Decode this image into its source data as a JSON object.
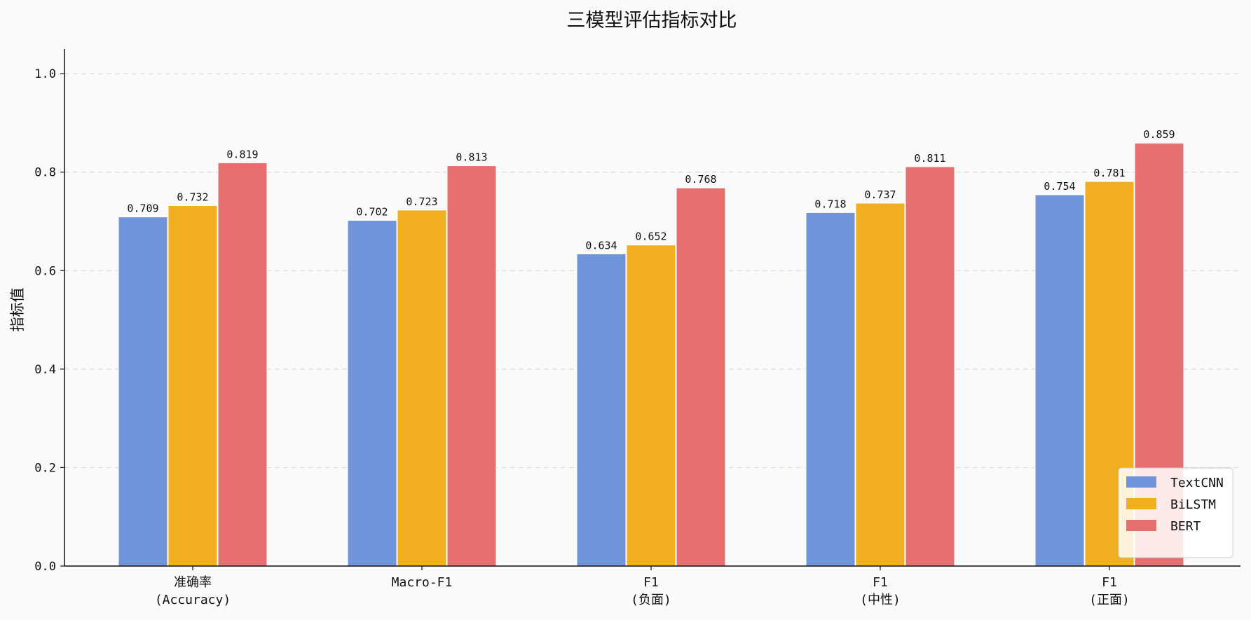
{
  "chart_data": {
    "type": "bar",
    "title": "三模型评估指标对比",
    "xlabel": "",
    "ylabel": "指标值",
    "ylim": [
      0,
      1.05
    ],
    "yticks": [
      "0.0",
      "0.2",
      "0.4",
      "0.6",
      "0.8",
      "1.0"
    ],
    "grid": "horizontal dashed",
    "legend_position": "lower-right",
    "categories": [
      [
        "准确率",
        "(Accuracy)"
      ],
      [
        "Macro-F1"
      ],
      [
        "F1",
        "(负面)"
      ],
      [
        "F1",
        "(中性)"
      ],
      [
        "F1",
        "(正面)"
      ]
    ],
    "series": [
      {
        "name": "TextCNN",
        "color": "#6f94da",
        "values": [
          0.709,
          0.702,
          0.634,
          0.718,
          0.754
        ]
      },
      {
        "name": "BiLSTM",
        "color": "#f0ae20",
        "values": [
          0.732,
          0.723,
          0.652,
          0.737,
          0.781
        ]
      },
      {
        "name": "BERT",
        "color": "#e5706f",
        "values": [
          0.819,
          0.813,
          0.768,
          0.811,
          0.859
        ]
      }
    ],
    "value_labels": [
      [
        "0.709",
        "0.702",
        "0.634",
        "0.718",
        "0.754"
      ],
      [
        "0.732",
        "0.723",
        "0.652",
        "0.737",
        "0.781"
      ],
      [
        "0.819",
        "0.813",
        "0.768",
        "0.811",
        "0.859"
      ]
    ]
  }
}
